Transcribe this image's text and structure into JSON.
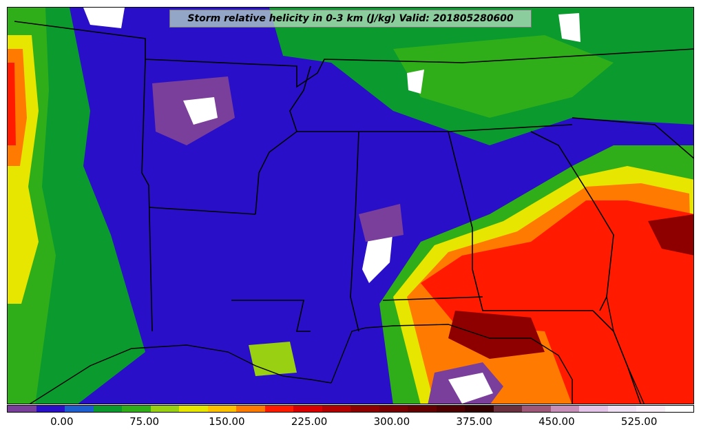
{
  "title": "Storm relative helicity in 0-3 km (J/kg) Valid: 201805280600",
  "colorbar": {
    "colors": [
      "#7a3f9a",
      "#2a0fc8",
      "#1e5fd0",
      "#0a9a2e",
      "#2fae1a",
      "#9ad012",
      "#e6e600",
      "#ffc000",
      "#ff7a00",
      "#ff1a00",
      "#d80000",
      "#b30000",
      "#8e0000",
      "#780000",
      "#640000",
      "#4e0000",
      "#340000",
      "#6a3040",
      "#a05878",
      "#c890b8",
      "#e4c4e8",
      "#f0e0f4",
      "#f8eef8",
      "#ffffff"
    ],
    "ticks": [
      "0.00",
      "75.00",
      "150.00",
      "225.00",
      "300.00",
      "375.00",
      "450.00",
      "525.00"
    ],
    "tick_values": [
      0,
      75,
      150,
      225,
      300,
      375,
      450,
      525
    ],
    "min": -50,
    "max": 575
  },
  "map": {
    "background_color": "#1e5fd0",
    "boundary_color": "#000000"
  }
}
